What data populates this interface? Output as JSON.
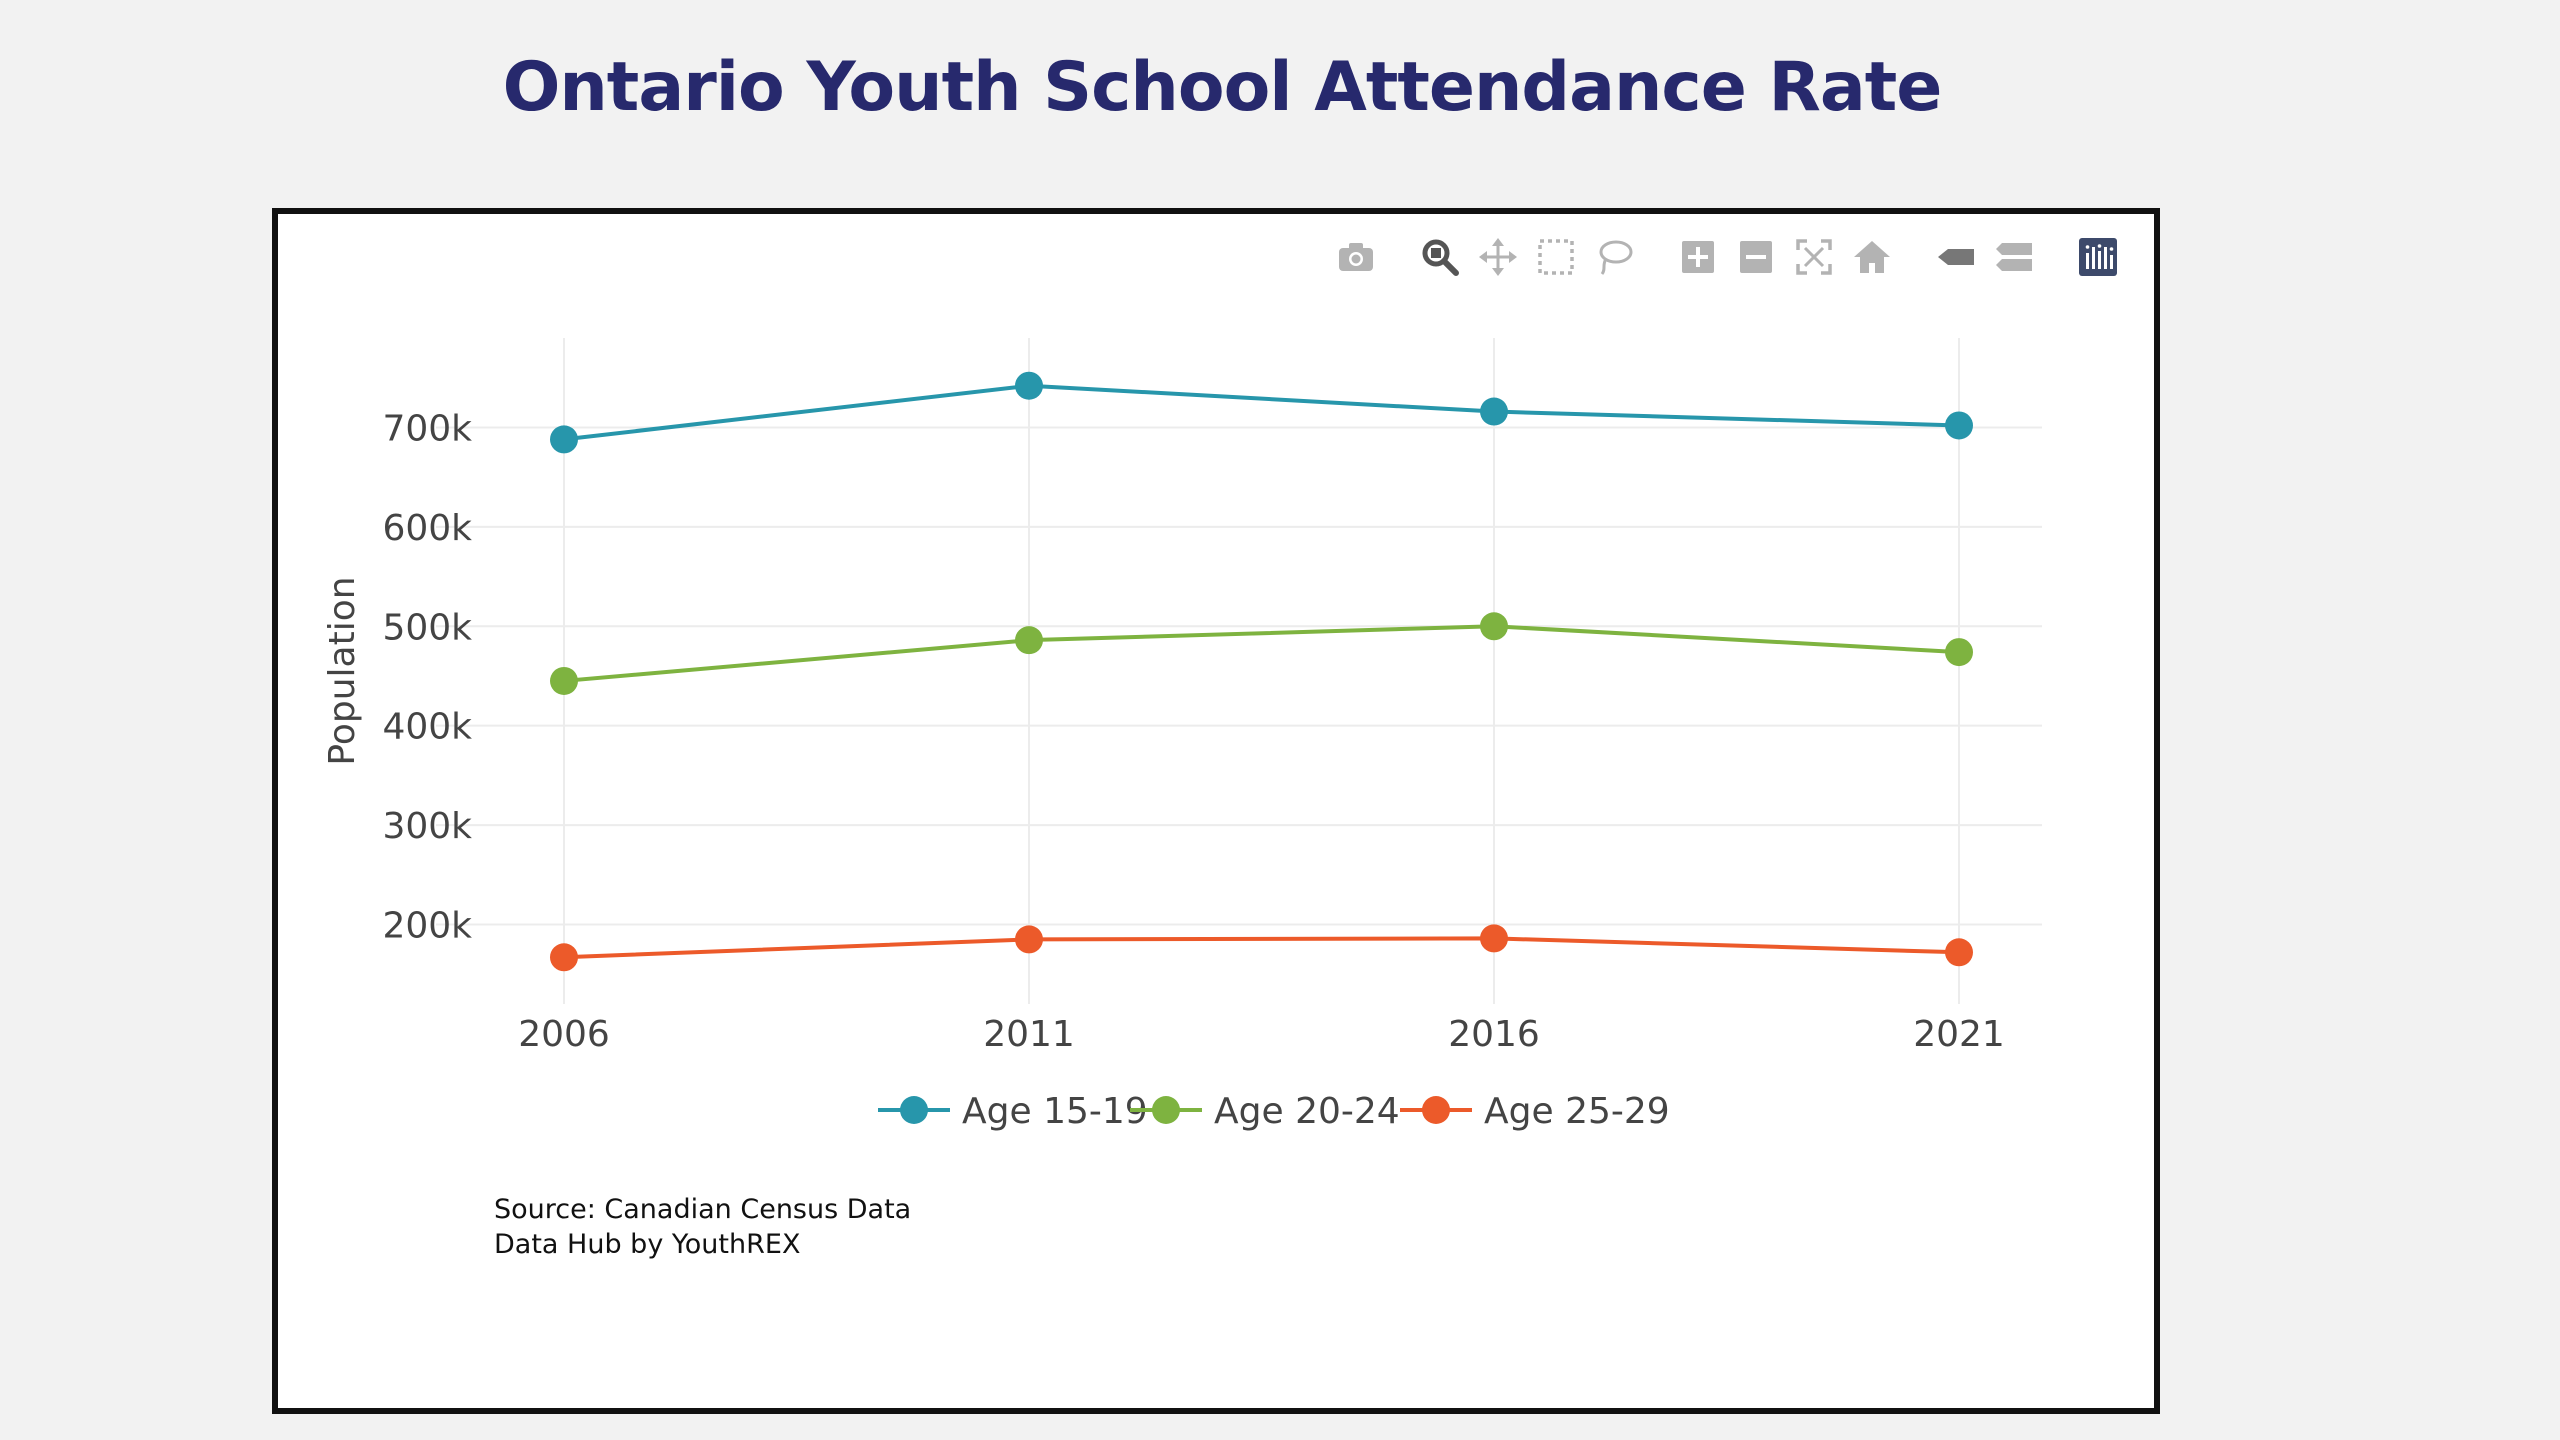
{
  "page": {
    "title": "Ontario Youth School Attendance Rate"
  },
  "modebar": {
    "buttons": [
      {
        "name": "camera-icon",
        "label": "Download plot as a png"
      },
      {
        "name": "zoom-icon",
        "label": "Zoom"
      },
      {
        "name": "pan-icon",
        "label": "Pan"
      },
      {
        "name": "box-select-icon",
        "label": "Box Select"
      },
      {
        "name": "lasso-select-icon",
        "label": "Lasso Select"
      },
      {
        "name": "zoom-in-icon",
        "label": "Zoom in"
      },
      {
        "name": "zoom-out-icon",
        "label": "Zoom out"
      },
      {
        "name": "autoscale-icon",
        "label": "Autoscale"
      },
      {
        "name": "reset-axes-icon",
        "label": "Reset axes"
      },
      {
        "name": "spike-lines-icon",
        "label": "Toggle Spike Lines"
      },
      {
        "name": "compare-hover-icon",
        "label": "Compare data on hover"
      },
      {
        "name": "plotly-logo-icon",
        "label": "Produced with Plotly"
      }
    ],
    "colors": {
      "icon": "#b3b3b3",
      "icon_active": "#555555",
      "logo": "#3d4a6b"
    }
  },
  "chart_data": {
    "type": "line",
    "title": "",
    "xlabel": "",
    "ylabel": "Population",
    "x": [
      2006,
      2011,
      2016,
      2021
    ],
    "x_tick_labels": [
      "2006",
      "2011",
      "2016",
      "2021"
    ],
    "y_ticks": [
      200000,
      300000,
      400000,
      500000,
      600000,
      700000
    ],
    "y_tick_labels": [
      "200k",
      "300k",
      "400k",
      "500k",
      "600k",
      "700k"
    ],
    "ylim": [
      120000,
      790000
    ],
    "grid": true,
    "legend_position": "bottom-center",
    "series": [
      {
        "name": "Age 15-19",
        "color": "#2796ab",
        "values": [
          688000,
          742000,
          716000,
          702000
        ]
      },
      {
        "name": "Age 20-24",
        "color": "#7eb340",
        "values": [
          445000,
          486000,
          500000,
          474000
        ]
      },
      {
        "name": "Age 25-29",
        "color": "#ec5a2a",
        "values": [
          167000,
          185000,
          186000,
          172000
        ]
      }
    ]
  },
  "source": {
    "line1": "Source: Canadian Census Data",
    "line2": "Data Hub by YouthREX"
  }
}
